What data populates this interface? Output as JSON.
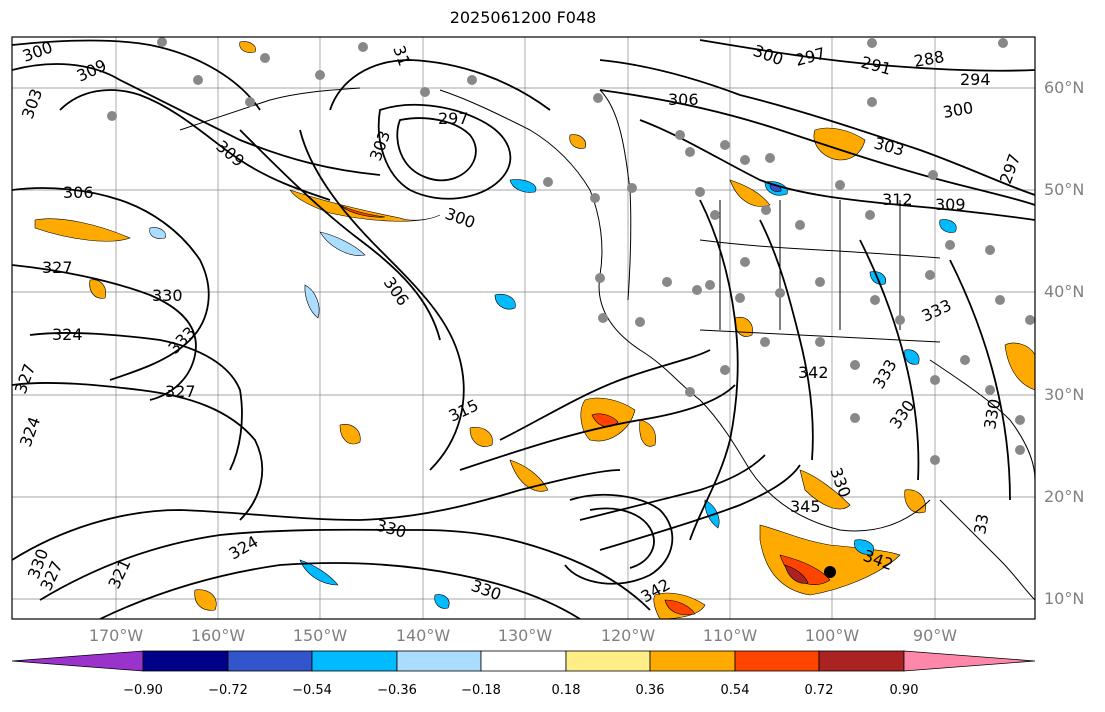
{
  "title": "2025061200 F048",
  "latitude_labels": [
    "60°N",
    "50°N",
    "40°N",
    "30°N",
    "20°N",
    "10°N"
  ],
  "longitude_labels": [
    "170°W",
    "160°W",
    "150°W",
    "140°W",
    "130°W",
    "120°W",
    "110°W",
    "100°W",
    "90°W"
  ],
  "contour_labels": [
    "300",
    "309",
    "303",
    "306",
    "327",
    "330",
    "333",
    "324",
    "327",
    "330",
    "327",
    "324",
    "321",
    "327",
    "309",
    "306",
    "300",
    "303",
    "297",
    "306",
    "300",
    "297",
    "291",
    "288",
    "294",
    "300",
    "303",
    "312",
    "309",
    "297",
    "315",
    "330",
    "324",
    "330",
    "342",
    "333",
    "333",
    "330",
    "330",
    "345",
    "342",
    "342",
    "330",
    "33",
    "31"
  ],
  "colorbar": {
    "colors": [
      "#9933cc",
      "#000088",
      "#3355cc",
      "#00bbff",
      "#aaddff",
      "#ffffff",
      "#ffee88",
      "#ffaa00",
      "#ff4400",
      "#aa2222",
      "#ff88aa"
    ],
    "ticks": [
      "−0.90",
      "−0.72",
      "−0.54",
      "−0.36",
      "−0.18",
      "0.18",
      "0.36",
      "0.54",
      "0.72",
      "0.90"
    ]
  },
  "colors": {
    "frame": "#000000",
    "grid": "#888888",
    "coast": "#000000",
    "positive_light": "#ffee88",
    "positive_mid": "#ffaa00",
    "positive_strong": "#ff4400",
    "positive_max": "#aa2222",
    "negative_light": "#aaddff",
    "negative_mid": "#00bbff",
    "negative_strong": "#3355cc",
    "station_dot": "#888888"
  }
}
